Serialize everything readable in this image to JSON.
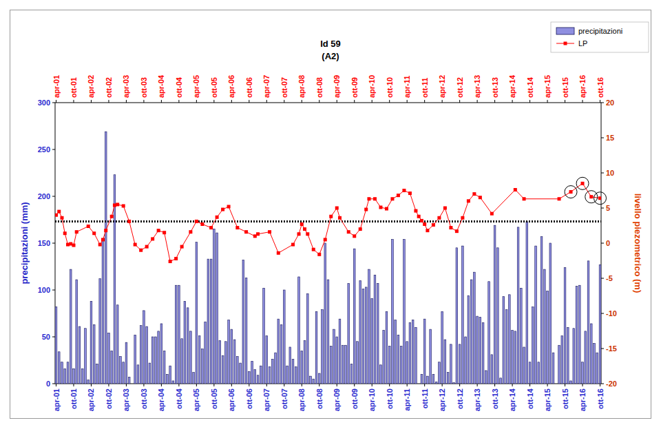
{
  "chart_data": {
    "type": "bar",
    "title": "Id 59",
    "subtitle": "(A2)",
    "y_label": "precipitazioni (mm)",
    "y2_label": "livello piezometrico (m)",
    "categories": [
      "apr-01",
      null,
      null,
      null,
      null,
      null,
      "ott-01",
      null,
      null,
      null,
      null,
      null,
      "apr-02",
      null,
      null,
      null,
      null,
      null,
      "ott-02",
      null,
      null,
      null,
      null,
      null,
      "apr-03",
      null,
      null,
      null,
      null,
      null,
      "ott-03",
      null,
      null,
      null,
      null,
      null,
      "apr-04",
      null,
      null,
      null,
      null,
      null,
      "ott-04",
      null,
      null,
      null,
      null,
      null,
      "apr-05",
      null,
      null,
      null,
      null,
      null,
      "ott-05",
      null,
      null,
      null,
      null,
      null,
      "apr-06",
      null,
      null,
      null,
      null,
      null,
      "ott-06",
      null,
      null,
      null,
      null,
      null,
      "apr-07",
      null,
      null,
      null,
      null,
      null,
      "ott-07",
      null,
      null,
      null,
      null,
      null,
      "apr-08",
      null,
      null,
      null,
      null,
      null,
      "ott-08",
      null,
      null,
      null,
      null,
      null,
      "apr-09",
      null,
      null,
      null,
      null,
      null,
      "ott-09",
      null,
      null,
      null,
      null,
      null,
      "apr-10",
      null,
      null,
      null,
      null,
      null,
      "ott-10",
      null,
      null,
      null,
      null,
      null,
      "apr-11",
      null,
      null,
      null,
      null,
      null,
      "ott-11",
      null,
      null,
      null,
      null,
      null,
      "apr-12",
      null,
      null,
      null,
      null,
      null,
      "ott-12",
      null,
      null,
      null,
      null,
      null,
      "apr-13",
      null,
      null,
      null,
      null,
      null,
      "ott-13",
      null,
      null,
      null,
      null,
      null,
      "apr-14",
      null,
      null,
      null,
      null,
      null,
      "ott-14",
      null,
      null,
      null,
      null,
      null,
      "apr-15",
      null,
      null,
      null,
      null,
      null,
      "ott-15",
      null,
      null,
      null,
      null,
      null,
      "apr-16",
      null,
      null,
      null,
      null,
      null,
      "ott-16"
    ],
    "series": [
      {
        "name": "precipitazioni",
        "type": "bar",
        "color": "#8f8fe0",
        "values": [
          82,
          34,
          23,
          16,
          23,
          122,
          16,
          111,
          61,
          16,
          59,
          4,
          88,
          63,
          21,
          112,
          155,
          269,
          54,
          35,
          223,
          84,
          29,
          23,
          44,
          7,
          0,
          52,
          20,
          62,
          78,
          61,
          22,
          50,
          50,
          56,
          64,
          35,
          10,
          19,
          3,
          105,
          105,
          48,
          88,
          81,
          56,
          12,
          151,
          51,
          37,
          66,
          133,
          133,
          165,
          161,
          46,
          30,
          45,
          68,
          58,
          47,
          29,
          22,
          132,
          113,
          13,
          24,
          15,
          9,
          19,
          102,
          51,
          18,
          26,
          33,
          69,
          63,
          100,
          19,
          39,
          26,
          18,
          114,
          35,
          46,
          96,
          8,
          5,
          77,
          11,
          79,
          150,
          111,
          40,
          58,
          50,
          69,
          41,
          41,
          107,
          21,
          144,
          45,
          110,
          101,
          103,
          122,
          91,
          116,
          107,
          20,
          57,
          77,
          40,
          154,
          68,
          52,
          40,
          154,
          45,
          65,
          68,
          60,
          0,
          10,
          69,
          8,
          58,
          10,
          2,
          23,
          77,
          47,
          12,
          42,
          1,
          145,
          42,
          147,
          50,
          94,
          111,
          119,
          72,
          71,
          65,
          14,
          109,
          31,
          169,
          145,
          6,
          93,
          79,
          95,
          57,
          56,
          167,
          102,
          39,
          173,
          23,
          82,
          147,
          23,
          157,
          122,
          99,
          150,
          33,
          0,
          41,
          51,
          124,
          60,
          3,
          59,
          104,
          105,
          23,
          56,
          131,
          64,
          43,
          33,
          127
        ]
      },
      {
        "name": "LP",
        "type": "line",
        "axis": "y2",
        "color": "#ff0000",
        "marker": "square",
        "line_style": "solid",
        "x": [
          0,
          1,
          2,
          3,
          4,
          5,
          6,
          7,
          11,
          13,
          15,
          16,
          17,
          19,
          20,
          21,
          23,
          25,
          27,
          29,
          31,
          33,
          35,
          37,
          39,
          41,
          43,
          46,
          48,
          50,
          53,
          55,
          57,
          59,
          62,
          65,
          68,
          69,
          73,
          76,
          81,
          83,
          84,
          85,
          86,
          88,
          90,
          92,
          94,
          96,
          97,
          100,
          102,
          104,
          106,
          107,
          109,
          111,
          113,
          115,
          117,
          119,
          121,
          123,
          124,
          125,
          126,
          127,
          129,
          131,
          133,
          135,
          137,
          139,
          141,
          143,
          145,
          149,
          157,
          160,
          172,
          176,
          180,
          183,
          186
        ],
        "values": [
          4.0,
          4.5,
          3.6,
          1.4,
          -0.2,
          -0.1,
          -0.3,
          1.6,
          2.4,
          1.4,
          -0.2,
          0.5,
          1.8,
          3.8,
          5.4,
          5.5,
          5.3,
          3.1,
          -0.2,
          -1.0,
          -0.5,
          0.6,
          1.8,
          1.5,
          -2.6,
          -2.2,
          -0.5,
          1.6,
          3.1,
          2.7,
          2.2,
          3.7,
          4.8,
          5.2,
          2.2,
          1.6,
          1.0,
          1.3,
          1.6,
          -1.4,
          -0.2,
          1.3,
          2.7,
          2.0,
          1.3,
          -0.9,
          -1.6,
          0.5,
          3.8,
          5.0,
          3.6,
          1.6,
          1.0,
          2.0,
          4.8,
          6.3,
          6.3,
          5.1,
          4.9,
          6.3,
          6.8,
          7.5,
          7.1,
          4.6,
          3.8,
          3.2,
          2.7,
          1.8,
          2.6,
          3.6,
          5.0,
          2.2,
          1.7,
          3.6,
          6.0,
          7.0,
          6.5,
          4.2,
          7.6,
          6.3,
          6.3,
          7.3,
          8.5,
          6.6,
          6.4
        ]
      }
    ],
    "reference_line": 3.1,
    "ylim": [
      0,
      300
    ],
    "yticks": [
      0,
      50,
      100,
      150,
      200,
      250,
      300
    ],
    "y2lim": [
      -20,
      20
    ],
    "y2ticks": [
      -20,
      -15,
      -10,
      -5,
      0,
      5,
      10,
      15,
      20
    ],
    "grid": false,
    "legend": "upper right"
  }
}
